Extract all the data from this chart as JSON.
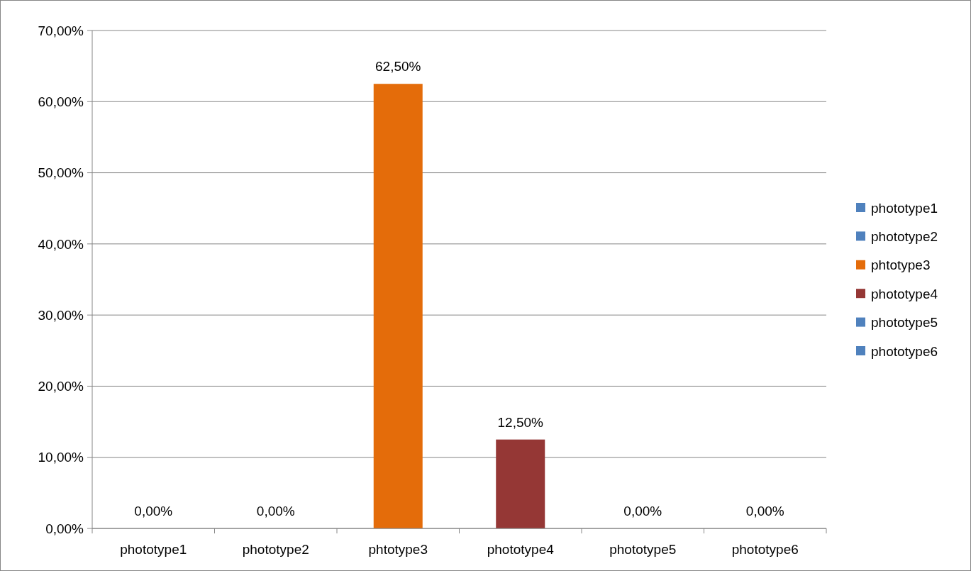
{
  "chart_data": {
    "type": "bar",
    "categories": [
      "phototype1",
      "phototype2",
      "phtotype3",
      "phototype4",
      "phototype5",
      "phototype6"
    ],
    "series": [
      {
        "name": "phototype1",
        "color": "#4f81bd",
        "values": [
          0,
          null,
          null,
          null,
          null,
          null
        ],
        "value_labels": [
          "0,00%",
          null,
          null,
          null,
          null,
          null
        ]
      },
      {
        "name": "phototype2",
        "color": "#4f81bd",
        "values": [
          null,
          0,
          null,
          null,
          null,
          null
        ],
        "value_labels": [
          null,
          "0,00%",
          null,
          null,
          null,
          null
        ]
      },
      {
        "name": "phtotype3",
        "color": "#e46c0a",
        "values": [
          null,
          null,
          62.5,
          null,
          null,
          null
        ],
        "value_labels": [
          null,
          null,
          "62,50%",
          null,
          null,
          null
        ]
      },
      {
        "name": "phototype4",
        "color": "#953735",
        "values": [
          null,
          null,
          null,
          12.5,
          null,
          null
        ],
        "value_labels": [
          null,
          null,
          null,
          "12,50%",
          null,
          null
        ]
      },
      {
        "name": "phototype5",
        "color": "#4f81bd",
        "values": [
          null,
          null,
          null,
          null,
          0,
          null
        ],
        "value_labels": [
          null,
          null,
          null,
          null,
          "0,00%",
          null
        ]
      },
      {
        "name": "phototype6",
        "color": "#4f81bd",
        "values": [
          null,
          null,
          null,
          null,
          null,
          0
        ],
        "value_labels": [
          null,
          null,
          null,
          null,
          null,
          "0,00%"
        ]
      }
    ],
    "ylim": [
      0,
      70
    ],
    "yticks": [
      {
        "value": 0,
        "label": "0,00%"
      },
      {
        "value": 10,
        "label": "10,00%"
      },
      {
        "value": 20,
        "label": "20,00%"
      },
      {
        "value": 30,
        "label": "30,00%"
      },
      {
        "value": 40,
        "label": "40,00%"
      },
      {
        "value": 50,
        "label": "50,00%"
      },
      {
        "value": 60,
        "label": "60,00%"
      },
      {
        "value": 70,
        "label": "70,00%"
      }
    ],
    "grid": "y",
    "legend": "right"
  }
}
